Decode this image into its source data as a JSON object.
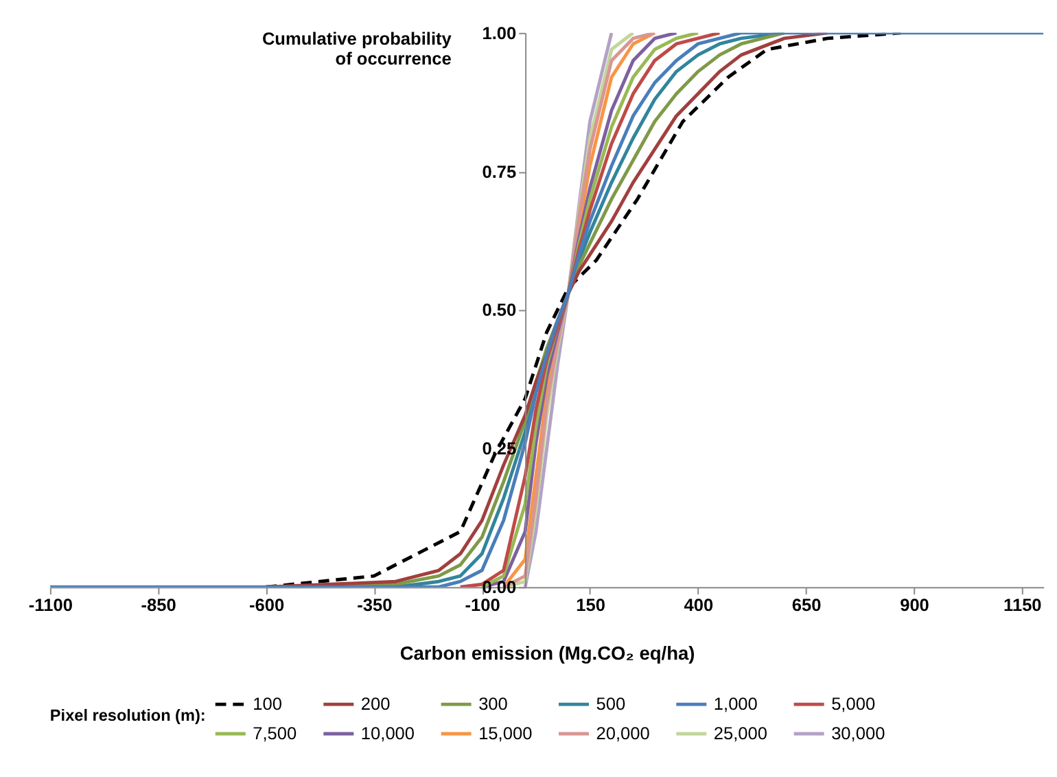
{
  "chart_data": {
    "type": "line",
    "xlabel": "Carbon emission (Mg.CO₂ eq/ha)",
    "ylabel": "Cumulative probability of occurrence",
    "legend_title": "Pixel resolution (m):",
    "legend": "bottom",
    "grid": false,
    "xlim": [
      -1100,
      1200
    ],
    "xticks": [
      -1100,
      -850,
      -600,
      -350,
      -100,
      150,
      400,
      650,
      900,
      1150
    ],
    "ylim": [
      0,
      1
    ],
    "yticks": [
      {
        "value": 0,
        "label": "0.00"
      },
      {
        "value": 0.25,
        "label": "0.25"
      },
      {
        "value": 0.5,
        "label": "0.50"
      },
      {
        "value": 0.75,
        "label": "0.75"
      },
      {
        "value": 1,
        "label": "1.00"
      }
    ],
    "x": [
      -1100,
      -600,
      -300,
      -200,
      -150,
      -100,
      -50,
      0,
      25,
      50,
      75,
      100,
      125,
      150,
      200,
      250,
      300,
      350,
      400,
      450,
      500,
      600,
      700,
      800,
      1200
    ],
    "series": [
      {
        "name": "100",
        "color": "#000000",
        "line_style": "dashed",
        "x": [
          -600,
          -350,
          -150,
          -70,
          0,
          50,
          100,
          165,
          260,
          365,
          470,
          560,
          700,
          870
        ],
        "values": [
          0,
          0.02,
          0.1,
          0.24,
          0.34,
          0.46,
          0.54,
          0.59,
          0.7,
          0.84,
          0.92,
          0.97,
          0.99,
          1
        ]
      },
      {
        "name": "200",
        "color": "#a0403e",
        "line_style": "solid",
        "values": [
          null,
          0,
          0.01,
          0.03,
          0.06,
          0.12,
          0.22,
          0.31,
          0.37,
          0.42,
          0.48,
          0.53,
          0.57,
          0.6,
          0.66,
          0.73,
          0.79,
          0.85,
          0.89,
          0.93,
          0.96,
          0.99,
          1,
          null,
          null
        ]
      },
      {
        "name": "300",
        "color": "#7f9a48",
        "line_style": "solid",
        "values": [
          null,
          0,
          0.005,
          0.02,
          0.04,
          0.09,
          0.19,
          0.3,
          0.37,
          0.43,
          0.48,
          0.53,
          0.58,
          0.62,
          0.7,
          0.77,
          0.84,
          0.89,
          0.93,
          0.96,
          0.98,
          1,
          null,
          null,
          null
        ]
      },
      {
        "name": "500",
        "color": "#31859c",
        "line_style": "solid",
        "values": [
          null,
          null,
          0,
          0.01,
          0.02,
          0.06,
          0.16,
          0.28,
          0.36,
          0.43,
          0.48,
          0.53,
          0.59,
          0.64,
          0.73,
          0.81,
          0.88,
          0.93,
          0.96,
          0.98,
          0.99,
          1,
          null,
          null,
          null
        ]
      },
      {
        "name": "1,000",
        "color": "#4a7ebb",
        "line_style": "solid",
        "values": [
          0,
          0,
          0,
          0,
          0.01,
          0.03,
          0.12,
          0.26,
          0.35,
          0.42,
          0.48,
          0.53,
          0.6,
          0.66,
          0.76,
          0.85,
          0.91,
          0.95,
          0.98,
          0.99,
          1,
          1,
          1,
          1,
          1
        ]
      },
      {
        "name": "5,000",
        "color": "#be4b48",
        "line_style": "solid",
        "values": [
          null,
          null,
          null,
          null,
          0,
          0.005,
          0.03,
          0.2,
          0.32,
          0.41,
          0.47,
          0.53,
          0.61,
          0.68,
          0.8,
          0.89,
          0.95,
          0.98,
          0.99,
          1,
          null,
          null,
          null,
          null,
          null
        ]
      },
      {
        "name": "7,500",
        "color": "#98b954",
        "line_style": "solid",
        "values": [
          null,
          null,
          null,
          null,
          null,
          0,
          0.02,
          0.15,
          0.29,
          0.4,
          0.47,
          0.53,
          0.62,
          0.7,
          0.83,
          0.92,
          0.97,
          0.99,
          1,
          null,
          null,
          null,
          null,
          null,
          null
        ]
      },
      {
        "name": "10,000",
        "color": "#7d60a0",
        "line_style": "solid",
        "values": [
          null,
          null,
          null,
          null,
          null,
          0,
          0.01,
          0.1,
          0.26,
          0.38,
          0.46,
          0.53,
          0.63,
          0.72,
          0.86,
          0.95,
          0.99,
          1,
          null,
          null,
          null,
          null,
          null,
          null,
          null
        ]
      },
      {
        "name": "15,000",
        "color": "#f79646",
        "line_style": "solid",
        "values": [
          null,
          null,
          null,
          null,
          null,
          null,
          0,
          0.05,
          0.2,
          0.35,
          0.45,
          0.53,
          0.65,
          0.76,
          0.92,
          0.98,
          1,
          null,
          null,
          null,
          null,
          null,
          null,
          null,
          null
        ]
      },
      {
        "name": "20,000",
        "color": "#d99694",
        "line_style": "solid",
        "values": [
          null,
          null,
          null,
          null,
          null,
          null,
          0,
          0.02,
          0.16,
          0.33,
          0.44,
          0.53,
          0.67,
          0.79,
          0.95,
          0.99,
          1,
          null,
          null,
          null,
          null,
          null,
          null,
          null,
          null
        ]
      },
      {
        "name": "25,000",
        "color": "#c3d69b",
        "line_style": "solid",
        "values": [
          null,
          null,
          null,
          null,
          null,
          null,
          0,
          0.01,
          0.14,
          0.31,
          0.43,
          0.53,
          0.68,
          0.81,
          0.97,
          1,
          null,
          null,
          null,
          null,
          null,
          null,
          null,
          null,
          null
        ]
      },
      {
        "name": "30,000",
        "color": "#b3a2c7",
        "line_style": "solid",
        "values": [
          null,
          null,
          null,
          null,
          null,
          null,
          null,
          0,
          0.1,
          0.25,
          0.4,
          0.53,
          0.69,
          0.84,
          1,
          null,
          null,
          null,
          null,
          null,
          null,
          null,
          null,
          null,
          null
        ]
      }
    ]
  }
}
